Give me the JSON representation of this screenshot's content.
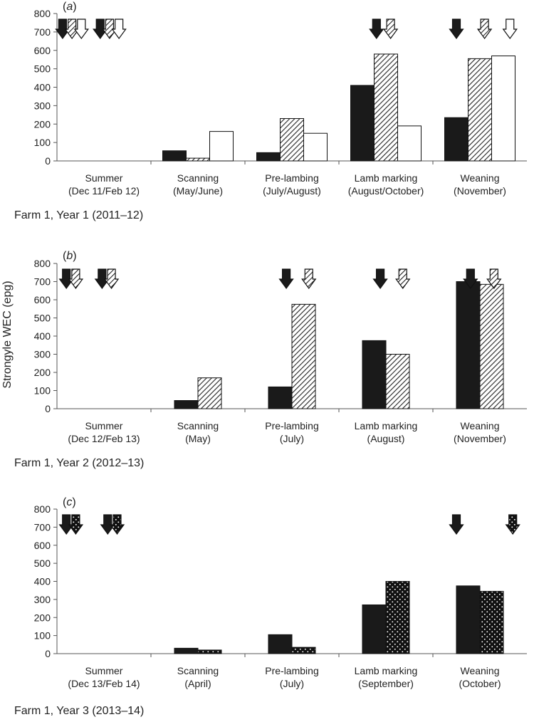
{
  "ylabel": "Strongyle WEC (epg)",
  "colors": {
    "solid": "#1a1a1a",
    "outline": "#333333",
    "background": "#ffffff"
  },
  "chart_data": [
    {
      "type": "bar",
      "panel_label": "a",
      "caption": "Farm 1, Year 1 (2011–12)",
      "ylim": [
        0,
        800
      ],
      "yticks": [
        0,
        100,
        200,
        300,
        400,
        500,
        600,
        700,
        800
      ],
      "categories": [
        {
          "line1": "Summer",
          "line2": "(Dec 11/Feb 12)"
        },
        {
          "line1": "Scanning",
          "line2": "(May/June)"
        },
        {
          "line1": "Pre-lambing",
          "line2": "(July/August)"
        },
        {
          "line1": "Lamb marking",
          "line2": "(August/October)"
        },
        {
          "line1": "Weaning",
          "line2": "(November)"
        }
      ],
      "series": [
        {
          "style": "solid",
          "values": [
            0,
            55,
            45,
            410,
            235
          ]
        },
        {
          "style": "hatched",
          "values": [
            0,
            15,
            230,
            580,
            555
          ]
        },
        {
          "style": "white",
          "values": [
            0,
            160,
            150,
            190,
            570
          ]
        }
      ],
      "arrows": [
        {
          "category": 0,
          "series": 0,
          "pos": 0.06
        },
        {
          "category": 0,
          "series": 1,
          "pos": 0.16
        },
        {
          "category": 0,
          "series": 2,
          "pos": 0.26
        },
        {
          "category": 0,
          "series": 0,
          "pos": 0.46
        },
        {
          "category": 0,
          "series": 1,
          "pos": 0.56
        },
        {
          "category": 0,
          "series": 2,
          "pos": 0.66
        },
        {
          "category": 3,
          "series": 0,
          "pos": 0.4
        },
        {
          "category": 3,
          "series": 1,
          "pos": 0.55
        },
        {
          "category": 4,
          "series": 0,
          "pos": 0.25
        },
        {
          "category": 4,
          "series": 1,
          "pos": 0.55
        },
        {
          "category": 4,
          "series": 2,
          "pos": 0.82
        }
      ]
    },
    {
      "type": "bar",
      "panel_label": "b",
      "caption": "Farm 1, Year 2 (2012–13)",
      "ylim": [
        0,
        800
      ],
      "yticks": [
        0,
        100,
        200,
        300,
        400,
        500,
        600,
        700,
        800
      ],
      "categories": [
        {
          "line1": "Summer",
          "line2": "(Dec 12/Feb 13)"
        },
        {
          "line1": "Scanning",
          "line2": "(May)"
        },
        {
          "line1": "Pre-lambing",
          "line2": "(July)"
        },
        {
          "line1": "Lamb marking",
          "line2": "(August)"
        },
        {
          "line1": "Weaning",
          "line2": "(November)"
        }
      ],
      "series": [
        {
          "style": "solid",
          "values": [
            0,
            45,
            120,
            375,
            700
          ]
        },
        {
          "style": "hatched",
          "values": [
            0,
            170,
            575,
            300,
            685
          ]
        }
      ],
      "arrows": [
        {
          "category": 0,
          "series": 0,
          "pos": 0.1
        },
        {
          "category": 0,
          "series": 1,
          "pos": 0.2
        },
        {
          "category": 0,
          "series": 0,
          "pos": 0.48
        },
        {
          "category": 0,
          "series": 1,
          "pos": 0.58
        },
        {
          "category": 2,
          "series": 0,
          "pos": 0.44
        },
        {
          "category": 2,
          "series": 1,
          "pos": 0.68
        },
        {
          "category": 3,
          "series": 0,
          "pos": 0.44
        },
        {
          "category": 3,
          "series": 1,
          "pos": 0.68
        },
        {
          "category": 4,
          "series": 0,
          "pos": 0.4
        },
        {
          "category": 4,
          "series": 1,
          "pos": 0.65
        }
      ]
    },
    {
      "type": "bar",
      "panel_label": "c",
      "caption": "Farm 1, Year 3 (2013–14)",
      "ylim": [
        0,
        800
      ],
      "yticks": [
        0,
        100,
        200,
        300,
        400,
        500,
        600,
        700,
        800
      ],
      "categories": [
        {
          "line1": "Summer",
          "line2": "(Dec 13/Feb 14)"
        },
        {
          "line1": "Scanning",
          "line2": "(April)"
        },
        {
          "line1": "Pre-lambing",
          "line2": "(July)"
        },
        {
          "line1": "Lamb marking",
          "line2": "(September)"
        },
        {
          "line1": "Weaning",
          "line2": "(October)"
        }
      ],
      "series": [
        {
          "style": "solid",
          "values": [
            0,
            30,
            105,
            270,
            375
          ]
        },
        {
          "style": "dotted",
          "values": [
            0,
            20,
            35,
            400,
            345
          ]
        }
      ],
      "arrows": [
        {
          "category": 0,
          "series": 0,
          "pos": 0.1
        },
        {
          "category": 0,
          "series": 1,
          "pos": 0.2
        },
        {
          "category": 0,
          "series": 0,
          "pos": 0.54
        },
        {
          "category": 0,
          "series": 1,
          "pos": 0.64
        },
        {
          "category": 4,
          "series": 0,
          "pos": 0.25
        },
        {
          "category": 4,
          "series": 1,
          "pos": 0.85
        }
      ]
    }
  ]
}
